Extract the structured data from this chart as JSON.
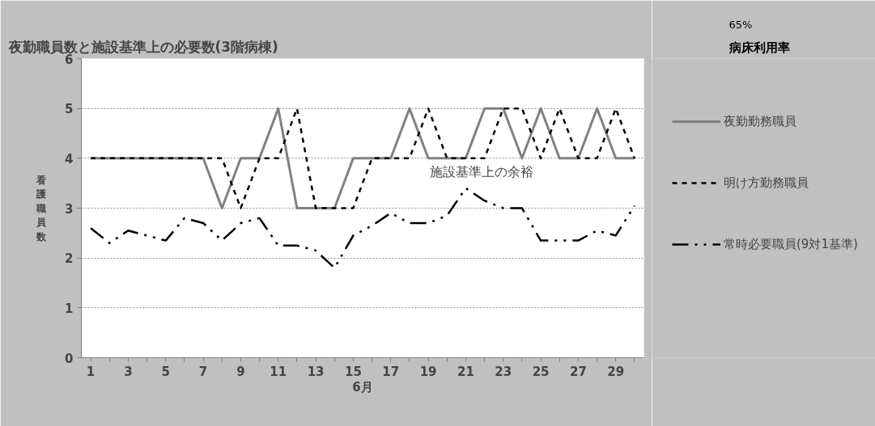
{
  "chart_data": {
    "type": "line",
    "title": "夜勤職員数と施設基準上の必要数(3階病棟)",
    "xlabel": "6月",
    "ylabel": "看護職員数",
    "x": [
      1,
      2,
      3,
      4,
      5,
      6,
      7,
      8,
      9,
      10,
      11,
      12,
      13,
      14,
      15,
      16,
      17,
      18,
      19,
      20,
      21,
      22,
      23,
      24,
      25,
      26,
      27,
      28,
      29,
      30
    ],
    "xlim": [
      0.5,
      30.5
    ],
    "xticks": [
      1,
      {
        "value": 2,
        "label": null
      },
      3,
      {
        "value": 4,
        "label": null
      },
      5,
      {
        "value": 6,
        "label": null
      },
      7,
      {
        "value": 8,
        "label": null
      },
      9,
      {
        "value": 10,
        "label": null
      },
      11,
      {
        "value": 12,
        "label": null
      },
      13,
      {
        "value": 14,
        "label": null
      },
      15,
      {
        "value": 16,
        "label": null
      },
      17,
      {
        "value": 18,
        "label": null
      },
      19,
      {
        "value": 20,
        "label": null
      },
      21,
      {
        "value": 22,
        "label": null
      },
      23,
      {
        "value": 24,
        "label": null
      },
      25,
      {
        "value": 26,
        "label": null
      },
      27,
      {
        "value": 28,
        "label": null
      },
      29,
      {
        "value": 30,
        "label": null
      }
    ],
    "ylim": [
      0,
      6
    ],
    "yticks": [
      0,
      1,
      2,
      3,
      4,
      5,
      6
    ],
    "grid": "y",
    "legend": "right",
    "marker": "none",
    "series": [
      {
        "name": "夜勤勤務職員",
        "color": "#808080",
        "line_style": "solid",
        "values": [
          4,
          4,
          4,
          4,
          4,
          4,
          4,
          3,
          4,
          4,
          5,
          3,
          3,
          3,
          4,
          4,
          4,
          5,
          4,
          4,
          4,
          5,
          5,
          4,
          5,
          4,
          4,
          5,
          4,
          4
        ]
      },
      {
        "name": "明け方勤務職員",
        "color": "#000000",
        "line_style": "dashed",
        "values": [
          4,
          4,
          4,
          4,
          4,
          4,
          4,
          4,
          3,
          4,
          4,
          5,
          3,
          3,
          3,
          4,
          4,
          4,
          5,
          4,
          4,
          4,
          5,
          5,
          4,
          5,
          4,
          4,
          5,
          4
        ]
      },
      {
        "name": "常時必要職員(9対1基準)",
        "color": "#000000",
        "line_style": "dashdot",
        "values": [
          2.6,
          2.3,
          2.55,
          2.45,
          2.35,
          2.8,
          2.7,
          2.35,
          2.7,
          2.8,
          2.25,
          2.25,
          2.15,
          1.8,
          2.45,
          2.65,
          2.9,
          2.7,
          2.7,
          2.85,
          3.4,
          3.15,
          3.0,
          3.0,
          2.35,
          2.35,
          2.35,
          2.55,
          2.45,
          3.05
        ]
      }
    ],
    "annotations": [
      "施設基準上の余裕",
      "病床利用率",
      "65%"
    ]
  }
}
